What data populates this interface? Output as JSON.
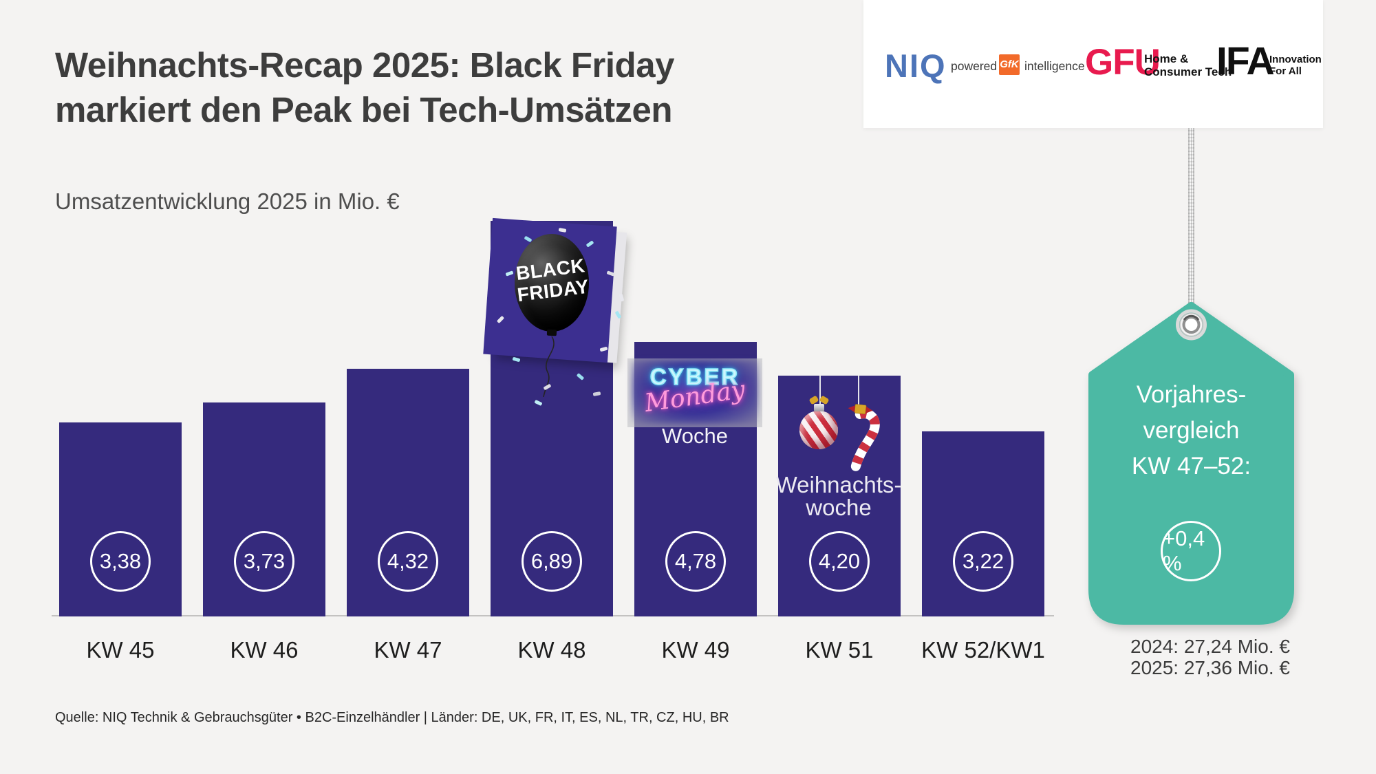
{
  "page": {
    "background": "#f4f3f2"
  },
  "header": {
    "title_line1": "Weihnachts-Recap 2025: Black Friday",
    "title_line2": "markiert den Peak bei Tech-Umsätzen",
    "subtitle": "Umsatzentwicklung 2025 in Mio. €"
  },
  "logos": {
    "niq_text": "NIQ",
    "powered_by": "powered by",
    "gfk_text": "GfK",
    "intelligence_text": "intelligence",
    "gfu_text": "GFU",
    "gfu_tagline_line1": "Home &",
    "gfu_tagline_line2": "Consumer Tech",
    "ifa_text": "IFA",
    "ifa_tagline_line1": "Innovation",
    "ifa_tagline_line2": "For All"
  },
  "chart_data": {
    "type": "bar",
    "title": "Umsatzentwicklung 2025 in Mio. €",
    "unit": "Mio. €",
    "categories": [
      "KW 45",
      "KW 46",
      "KW 47",
      "KW 48",
      "KW 49",
      "KW 51",
      "KW 52/KW1"
    ],
    "values": [
      3.38,
      3.73,
      4.32,
      6.89,
      4.78,
      4.2,
      3.22
    ],
    "value_labels": [
      "3,38",
      "3,73",
      "4,32",
      "6,89",
      "4,78",
      "4,20",
      "3,22"
    ],
    "bar_color": "#352a7d",
    "ylim": [
      0,
      7.2
    ],
    "grid": false,
    "annotations": [
      {
        "category": "KW 48",
        "label": "Black Friday"
      },
      {
        "category": "KW 49",
        "label": "Cyber Monday Woche"
      },
      {
        "category": "KW 51",
        "label": "Weihnachtswoche"
      }
    ]
  },
  "decorations": {
    "black_friday_line1": "BLACK",
    "black_friday_line2": "FRIDAY",
    "cyber_line1": "CYBER",
    "cyber_line2": "Monday",
    "cyber_line3": "Woche",
    "weihnachts_line1": "Weihnachts-",
    "weihnachts_line2": "woche"
  },
  "tag": {
    "color": "#4cb9a4",
    "line1": "Vorjahres-",
    "line2": "vergleich",
    "line3": "KW 47–52:",
    "badge_label": "+0,4 %",
    "prev_year": "2024: 27,24 Mio. €",
    "curr_year": "2025: 27,36 Mio. €"
  },
  "footer": {
    "source": "Quelle: NIQ Technik & Gebrauchsgüter • B2C-Einzelhändler | Länder: DE, UK, FR, IT, ES, NL, TR, CZ, HU, BR"
  }
}
